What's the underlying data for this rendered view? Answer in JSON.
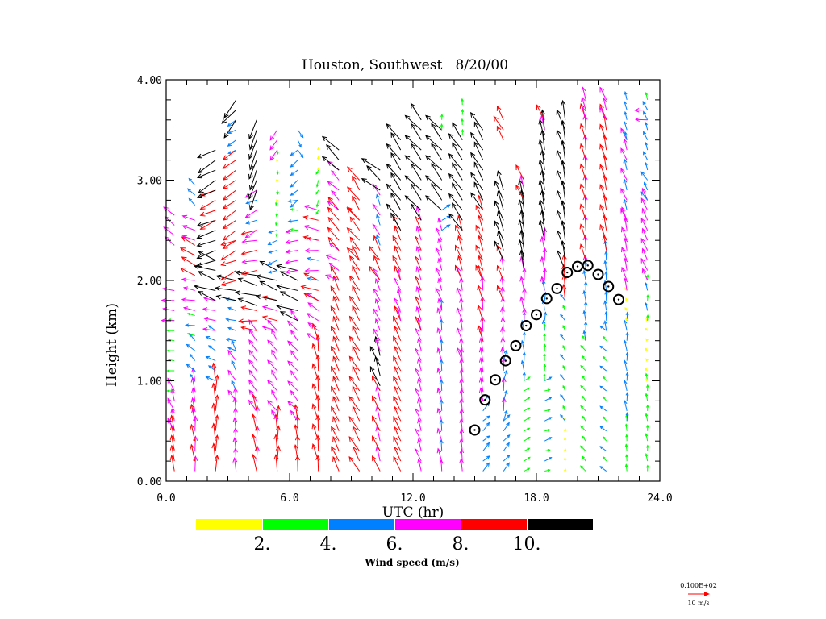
{
  "chart_data": {
    "type": "vector-field",
    "title": "Houston, Southwest   8/20/00",
    "xlabel": "UTC (hr)",
    "ylabel": "Height (km)",
    "xlim": [
      0,
      24
    ],
    "ylim": [
      0,
      4
    ],
    "x_ticks": [
      "0.0",
      "6.0",
      "12.0",
      "18.0",
      "24.0"
    ],
    "x_tick_values": [
      0,
      6,
      12,
      18,
      24
    ],
    "y_ticks": [
      "0.00",
      "1.00",
      "2.00",
      "3.00",
      "4.00"
    ],
    "y_tick_values": [
      0,
      1,
      2,
      3,
      4
    ],
    "colorbar": {
      "title": "Wind speed (m/s)",
      "labels": [
        "2.",
        "4.",
        "6.",
        "8.",
        "10."
      ],
      "bins": [
        {
          "min": 0,
          "max": 2,
          "color": "#ffff00"
        },
        {
          "min": 2,
          "max": 4,
          "color": "#00ff00"
        },
        {
          "min": 4,
          "max": 6,
          "color": "#0080ff"
        },
        {
          "min": 6,
          "max": 8,
          "color": "#ff00ff"
        },
        {
          "min": 8,
          "max": 10,
          "color": "#ff0000"
        },
        {
          "min": 10,
          "max": 99,
          "color": "#000000"
        }
      ]
    },
    "reference_vector": {
      "value_label": "0.100E+02",
      "unit_label": "10 m/s",
      "speed": 10,
      "color": "#ff0000"
    },
    "wind_profiles_note": "segments: [bottom_km, top_km, speed_ms, direction_deg_toward (0=east, 90=north)]",
    "wind_profiles": [
      {
        "hour": 0.4,
        "segments": [
          [
            0.1,
            0.5,
            8.5,
            100
          ],
          [
            0.5,
            0.9,
            7,
            110
          ],
          [
            0.9,
            1.6,
            3.5,
            175
          ],
          [
            1.6,
            1.95,
            6.5,
            175
          ],
          [
            2.35,
            2.7,
            7,
            140
          ]
        ]
      },
      {
        "hour": 1.4,
        "segments": [
          [
            0.1,
            0.6,
            8.5,
            95
          ],
          [
            0.6,
            1.0,
            7,
            100
          ],
          [
            1.0,
            1.45,
            5,
            135
          ],
          [
            1.45,
            1.7,
            4.5,
            170
          ],
          [
            1.7,
            2.0,
            6.5,
            170
          ],
          [
            2.05,
            2.35,
            8.5,
            150
          ],
          [
            2.4,
            2.6,
            7,
            160
          ],
          [
            2.75,
            2.95,
            5,
            135
          ]
        ]
      },
      {
        "hour": 2.4,
        "segments": [
          [
            0.1,
            1.0,
            9,
            90
          ],
          [
            1.0,
            1.5,
            5,
            150
          ],
          [
            1.5,
            1.8,
            6.5,
            170
          ],
          [
            1.8,
            2.2,
            11,
            160
          ],
          [
            2.2,
            2.6,
            10.5,
            200
          ],
          [
            2.6,
            2.9,
            9,
            205
          ],
          [
            2.9,
            3.3,
            11,
            210
          ]
        ]
      },
      {
        "hour": 3.4,
        "segments": [
          [
            0.1,
            0.8,
            7,
            95
          ],
          [
            0.8,
            1.3,
            6.5,
            120
          ],
          [
            1.3,
            1.8,
            5,
            165
          ],
          [
            1.8,
            2.0,
            11,
            170
          ],
          [
            2.0,
            2.4,
            9,
            205
          ],
          [
            2.4,
            3.3,
            8.5,
            215
          ],
          [
            3.3,
            3.6,
            5,
            210
          ],
          [
            3.6,
            3.8,
            11,
            230
          ]
        ]
      },
      {
        "hour": 4.4,
        "segments": [
          [
            0.1,
            0.7,
            8.5,
            95
          ],
          [
            0.7,
            1.5,
            7,
            125
          ],
          [
            1.5,
            1.75,
            9,
            175
          ],
          [
            1.75,
            2.1,
            11,
            165
          ],
          [
            2.1,
            2.5,
            8,
            190
          ],
          [
            2.5,
            2.9,
            6.5,
            205
          ],
          [
            2.9,
            3.6,
            11,
            250
          ]
        ]
      },
      {
        "hour": 5.4,
        "segments": [
          [
            0.1,
            0.6,
            8.5,
            90
          ],
          [
            0.6,
            1.5,
            7,
            125
          ],
          [
            1.5,
            1.8,
            8,
            165
          ],
          [
            1.8,
            2.1,
            11,
            160
          ],
          [
            2.1,
            2.5,
            5,
            200
          ],
          [
            2.5,
            2.8,
            3,
            260
          ],
          [
            2.8,
            3.3,
            1.5,
            270
          ],
          [
            3.3,
            3.55,
            6.5,
            235
          ]
        ]
      },
      {
        "hour": 6.4,
        "segments": [
          [
            0.1,
            0.6,
            8.5,
            95
          ],
          [
            0.6,
            1.6,
            7,
            130
          ],
          [
            1.6,
            2.1,
            11,
            160
          ],
          [
            2.1,
            2.5,
            6.5,
            190
          ],
          [
            2.5,
            2.8,
            4.5,
            180
          ],
          [
            2.8,
            3.3,
            5,
            220
          ],
          [
            3.3,
            3.5,
            4.5,
            300
          ]
        ]
      },
      {
        "hour": 7.4,
        "segments": [
          [
            0.1,
            1.4,
            9,
            100
          ],
          [
            1.4,
            1.8,
            7,
            145
          ],
          [
            1.8,
            2.0,
            9,
            160
          ],
          [
            2.0,
            2.4,
            6.5,
            175
          ],
          [
            2.4,
            2.7,
            8,
            165
          ],
          [
            2.7,
            3.1,
            3,
            250
          ],
          [
            3.1,
            3.3,
            1.5,
            90
          ]
        ]
      },
      {
        "hour": 8.4,
        "segments": [
          [
            0.1,
            2.0,
            8.5,
            115
          ],
          [
            2.0,
            2.3,
            7,
            150
          ],
          [
            2.3,
            2.7,
            9,
            130
          ],
          [
            2.7,
            3.1,
            7,
            135
          ],
          [
            3.1,
            3.35,
            11,
            135
          ]
        ]
      },
      {
        "hour": 9.4,
        "segments": [
          [
            0.1,
            2.2,
            9,
            120
          ],
          [
            2.2,
            2.6,
            9,
            130
          ],
          [
            2.6,
            3.0,
            9,
            125
          ]
        ]
      },
      {
        "hour": 10.4,
        "segments": [
          [
            0.1,
            0.95,
            8.5,
            110
          ],
          [
            0.95,
            1.3,
            11,
            110
          ],
          [
            1.3,
            2.0,
            7,
            115
          ],
          [
            2.0,
            2.35,
            9,
            120
          ],
          [
            2.35,
            2.9,
            6.5,
            115
          ],
          [
            2.9,
            3.1,
            11,
            140
          ]
        ]
      },
      {
        "hour": 11.4,
        "segments": [
          [
            0.1,
            1.6,
            8.5,
            115
          ],
          [
            1.6,
            2.0,
            7,
            110
          ],
          [
            2.0,
            2.5,
            8.5,
            115
          ],
          [
            2.5,
            3.45,
            11,
            125
          ]
        ]
      },
      {
        "hour": 12.4,
        "segments": [
          [
            0.1,
            1.5,
            7,
            110
          ],
          [
            1.5,
            2.6,
            8,
            110
          ],
          [
            2.6,
            3.65,
            11,
            130
          ]
        ]
      },
      {
        "hour": 13.4,
        "segments": [
          [
            0.1,
            1.7,
            6.5,
            100
          ],
          [
            1.7,
            2.5,
            7,
            110
          ],
          [
            2.5,
            2.7,
            5,
            30
          ],
          [
            2.7,
            3.5,
            11,
            130
          ],
          [
            3.5,
            3.6,
            3,
            90
          ]
        ]
      },
      {
        "hour": 14.4,
        "segments": [
          [
            0.1,
            1.2,
            6.5,
            95
          ],
          [
            1.2,
            2.0,
            7,
            105
          ],
          [
            2.0,
            2.5,
            8.5,
            110
          ],
          [
            2.5,
            3.4,
            11,
            125
          ],
          [
            3.45,
            3.8,
            3,
            90
          ]
        ]
      },
      {
        "hour": 15.4,
        "segments": [
          [
            0.1,
            0.8,
            5,
            45
          ],
          [
            0.8,
            1.4,
            7,
            100
          ],
          [
            1.4,
            2.0,
            8,
            100
          ],
          [
            2.0,
            2.7,
            8.5,
            110
          ],
          [
            2.7,
            3.5,
            11,
            120
          ]
        ]
      },
      {
        "hour": 16.4,
        "segments": [
          [
            0.1,
            0.6,
            5,
            50
          ],
          [
            0.6,
            1.2,
            6.5,
            80
          ],
          [
            1.2,
            1.8,
            7,
            95
          ],
          [
            1.8,
            2.2,
            8,
            105
          ],
          [
            2.2,
            2.9,
            11,
            110
          ],
          [
            3.4,
            3.6,
            8.5,
            120
          ]
        ]
      },
      {
        "hour": 17.4,
        "segments": [
          [
            0.1,
            1.0,
            3.5,
            30
          ],
          [
            1.0,
            1.6,
            5,
            95
          ],
          [
            1.6,
            2.1,
            7,
            95
          ],
          [
            2.1,
            2.8,
            11,
            100
          ],
          [
            2.8,
            3.0,
            8.5,
            110
          ]
        ]
      },
      {
        "hour": 18.4,
        "segments": [
          [
            0.1,
            1.0,
            3.5,
            20
          ],
          [
            1.0,
            1.5,
            3.5,
            90
          ],
          [
            1.5,
            1.9,
            5,
            90
          ],
          [
            1.9,
            2.4,
            7,
            95
          ],
          [
            2.4,
            3.5,
            11,
            100
          ],
          [
            3.5,
            3.6,
            8.5,
            110
          ]
        ]
      },
      {
        "hour": 19.4,
        "segments": [
          [
            0.1,
            0.6,
            1.5,
            90
          ],
          [
            0.6,
            1.8,
            3.5,
            120
          ],
          [
            1.8,
            2.1,
            8.5,
            95
          ],
          [
            2.1,
            3.6,
            11,
            105
          ]
        ]
      },
      {
        "hour": 20.4,
        "segments": [
          [
            0.1,
            1.4,
            3.5,
            130
          ],
          [
            1.4,
            2.1,
            5,
            95
          ],
          [
            2.1,
            3.6,
            8.5,
            100
          ],
          [
            3.6,
            3.8,
            7,
            105
          ]
        ]
      },
      {
        "hour": 21.4,
        "segments": [
          [
            0.1,
            1.5,
            3.5,
            135
          ],
          [
            1.5,
            2.3,
            5,
            95
          ],
          [
            2.3,
            3.6,
            8.5,
            105
          ],
          [
            3.6,
            3.8,
            7,
            110
          ]
        ]
      },
      {
        "hour": 22.4,
        "segments": [
          [
            0.1,
            0.6,
            3.5,
            95
          ],
          [
            0.6,
            1.6,
            5,
            95
          ],
          [
            1.6,
            1.9,
            1.5,
            120
          ],
          [
            1.9,
            2.6,
            7,
            105
          ],
          [
            2.6,
            3.4,
            6.5,
            110
          ],
          [
            3.4,
            3.8,
            4.5,
            105
          ]
        ]
      },
      {
        "hour": 23.4,
        "segments": [
          [
            0.1,
            1.0,
            3.5,
            95
          ],
          [
            1.0,
            1.6,
            1.5,
            130
          ],
          [
            1.6,
            2.0,
            3.5,
            95
          ],
          [
            2.0,
            2.8,
            7,
            115
          ],
          [
            2.8,
            3.0,
            5,
            120
          ],
          [
            3.1,
            3.6,
            4.5,
            110
          ],
          [
            3.6,
            3.7,
            6.5,
            180
          ],
          [
            3.7,
            3.8,
            4.5,
            110
          ]
        ]
      }
    ],
    "boundary_layer_height": {
      "hours": [
        15.0,
        15.5,
        16.0,
        16.5,
        17.0,
        17.5,
        18.0,
        18.5,
        19.0,
        19.5,
        20.0,
        20.5,
        21.0,
        21.5,
        22.0
      ],
      "heights_km": [
        0.51,
        0.81,
        1.01,
        1.2,
        1.35,
        1.55,
        1.66,
        1.82,
        1.92,
        2.08,
        2.14,
        2.15,
        2.06,
        1.94,
        1.81
      ]
    }
  }
}
